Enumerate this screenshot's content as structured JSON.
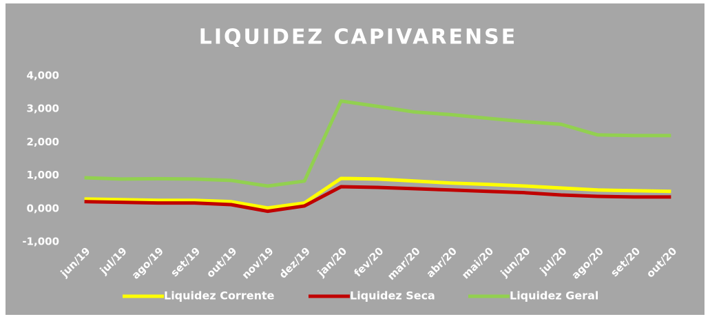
{
  "chart_data": {
    "type": "line",
    "title": "LIQUIDEZ CAPIVARENSE",
    "categories": [
      "jun/19",
      "jul/19",
      "ago/19",
      "set/19",
      "out/19",
      "nov/19",
      "dez/19",
      "jan/20",
      "fev/20",
      "mar/20",
      "abr/20",
      "mai/20",
      "jun/20",
      "jul/20",
      "ago/20",
      "set/20",
      "out/20"
    ],
    "series": [
      {
        "name": "Liquidez Corrente",
        "color": "#ffff00",
        "values": [
          0.29,
          0.27,
          0.25,
          0.25,
          0.21,
          0.02,
          0.17,
          0.91,
          0.89,
          0.83,
          0.77,
          0.73,
          0.68,
          0.62,
          0.56,
          0.54,
          0.52
        ]
      },
      {
        "name": "Liquidez Seca",
        "color": "#c00000",
        "values": [
          0.21,
          0.19,
          0.17,
          0.17,
          0.12,
          -0.08,
          0.08,
          0.66,
          0.64,
          0.6,
          0.56,
          0.52,
          0.48,
          0.41,
          0.37,
          0.35,
          0.35
        ]
      },
      {
        "name": "Liquidez Geral",
        "color": "#92d050",
        "values": [
          0.93,
          0.89,
          0.9,
          0.89,
          0.85,
          0.68,
          0.83,
          3.24,
          3.08,
          2.91,
          2.83,
          2.72,
          2.62,
          2.54,
          2.22,
          2.2,
          2.2
        ]
      }
    ],
    "ylim": [
      -1,
      4
    ],
    "yticks": [
      {
        "value": -1,
        "label": "-1,000"
      },
      {
        "value": 0,
        "label": "0,000"
      },
      {
        "value": 1,
        "label": "1,000"
      },
      {
        "value": 2,
        "label": "2,000"
      },
      {
        "value": 3,
        "label": "3,000"
      },
      {
        "value": 4,
        "label": "4,000"
      }
    ],
    "grid": false,
    "legend": "bottom"
  }
}
